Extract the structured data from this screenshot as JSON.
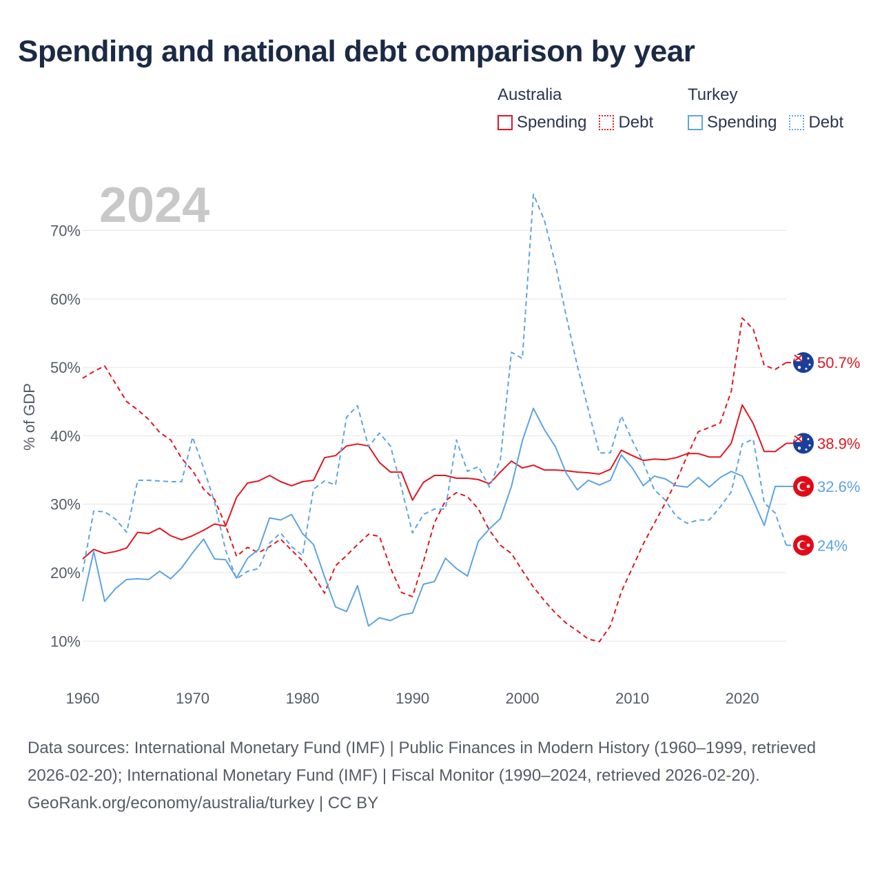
{
  "title": "Spending and national debt comparison by year",
  "legend": {
    "groups": [
      {
        "name": "Australia",
        "color": "#e0161e",
        "items": [
          {
            "label": "Spending",
            "style": "solid"
          },
          {
            "label": "Debt",
            "style": "dotted"
          }
        ]
      },
      {
        "name": "Turkey",
        "color": "#5ca3e3",
        "items": [
          {
            "label": "Spending",
            "style": "solid"
          },
          {
            "label": "Debt",
            "style": "dotted"
          }
        ]
      }
    ]
  },
  "year_label": "2024",
  "footer": {
    "sources": "Data sources: International Monetary Fund (IMF) | Public Finances in Modern History (1960–1999, retrieved 2026-02-20); International Monetary Fund (IMF) | Fiscal Monitor (1990–2024, retrieved 2026-02-20).",
    "credit": "GeoRank.org/economy/australia/turkey | CC BY"
  },
  "chart_data": {
    "type": "line",
    "ylabel": "% of GDP",
    "xlabel": "",
    "xlim": [
      1960,
      2024
    ],
    "ylim": [
      5,
      77
    ],
    "x_ticks": [
      1960,
      1970,
      1980,
      1990,
      2000,
      2010,
      2020
    ],
    "y_ticks": [
      10,
      20,
      30,
      40,
      50,
      60,
      70
    ],
    "y_tick_labels": [
      "10%",
      "20%",
      "30%",
      "40%",
      "50%",
      "60%",
      "70%"
    ],
    "grid": true,
    "x": [
      1960,
      1961,
      1962,
      1963,
      1964,
      1965,
      1966,
      1967,
      1968,
      1969,
      1970,
      1971,
      1972,
      1973,
      1974,
      1975,
      1976,
      1977,
      1978,
      1979,
      1980,
      1981,
      1982,
      1983,
      1984,
      1985,
      1986,
      1987,
      1988,
      1989,
      1990,
      1991,
      1992,
      1993,
      1994,
      1995,
      1996,
      1997,
      1998,
      1999,
      2000,
      2001,
      2002,
      2003,
      2004,
      2005,
      2006,
      2007,
      2008,
      2009,
      2010,
      2011,
      2012,
      2013,
      2014,
      2015,
      2016,
      2017,
      2018,
      2019,
      2020,
      2021,
      2022,
      2023,
      2024
    ],
    "series": [
      {
        "name": "Australia Debt",
        "country": "Australia",
        "kind": "Debt",
        "color": "#e0161e",
        "dash": "dashed",
        "end_label": "50.7%",
        "values": [
          48.4,
          49.4,
          50.2,
          47.6,
          45,
          43.8,
          42.4,
          40.5,
          39.4,
          36.7,
          34.9,
          32.2,
          30.7,
          26.9,
          22.4,
          23.7,
          22.9,
          23.8,
          24.9,
          23.3,
          21.7,
          19.6,
          17,
          21,
          22.5,
          24.1,
          25.6,
          25.3,
          20.7,
          17.1,
          16.5,
          21.6,
          27.3,
          30.5,
          31.7,
          31.1,
          29.3,
          26.2,
          24,
          22.8,
          20.3,
          17.9,
          15.9,
          14.1,
          12.6,
          11.5,
          10.3,
          9.9,
          12.2,
          17.2,
          20.7,
          24.2,
          27.2,
          30.2,
          33.4,
          37.1,
          40.6,
          41.2,
          41.9,
          46.5,
          57.2,
          55.6,
          50.3,
          49.7,
          50.7
        ]
      },
      {
        "name": "Australia Spending",
        "country": "Australia",
        "kind": "Spending",
        "color": "#e0161e",
        "dash": "solid",
        "end_label": "38.9%",
        "values": [
          22,
          23.4,
          22.8,
          23.1,
          23.6,
          25.9,
          25.7,
          26.5,
          25.4,
          24.8,
          25.4,
          26.2,
          27.1,
          26.8,
          31,
          33.1,
          33.4,
          34.2,
          33.3,
          32.7,
          33.3,
          33.5,
          36.8,
          37.1,
          38.5,
          38.8,
          38.5,
          36.1,
          34.7,
          34.7,
          30.6,
          33.2,
          34.2,
          34.2,
          33.8,
          33.8,
          33.6,
          33,
          34.7,
          36.3,
          35.3,
          35.7,
          35,
          35,
          34.9,
          34.7,
          34.6,
          34.4,
          35.1,
          37.9,
          37.1,
          36.4,
          36.6,
          36.5,
          36.8,
          37.4,
          37.4,
          36.9,
          36.9,
          38.9,
          44.5,
          41.8,
          37.7,
          37.7,
          38.9
        ]
      },
      {
        "name": "Turkey Spending",
        "country": "Turkey",
        "kind": "Spending",
        "color": "#5ca3e3",
        "dash": "solid",
        "end_label": "32.6%",
        "values": [
          15.8,
          23.1,
          15.8,
          17.7,
          19,
          19.1,
          19,
          20.2,
          19.1,
          20.7,
          22.9,
          24.9,
          22,
          21.9,
          19.2,
          22.1,
          23.4,
          28,
          27.7,
          28.5,
          25.7,
          24.1,
          19.4,
          15,
          14.3,
          18.1,
          12.2,
          13.4,
          13,
          13.8,
          14.1,
          18.3,
          18.7,
          22.1,
          20.6,
          19.5,
          24.6,
          26.4,
          27.9,
          32.6,
          39.3,
          44,
          40.9,
          38.4,
          34.5,
          32.1,
          33.5,
          32.8,
          33.5,
          37.2,
          35.3,
          32.7,
          34.1,
          33.7,
          32.7,
          32.5,
          33.9,
          32.5,
          33.9,
          34.8,
          34.1,
          30.6,
          26.9,
          32.6,
          32.6
        ]
      },
      {
        "name": "Turkey Debt",
        "country": "Turkey",
        "kind": "Debt",
        "color": "#5ca3e3",
        "dash": "dashed",
        "end_label": "24%",
        "values": [
          20.1,
          29,
          28.9,
          27.8,
          25.9,
          33.5,
          33.5,
          33.4,
          33.3,
          33.3,
          39.8,
          35.3,
          30.3,
          23.3,
          19.1,
          20.2,
          20.6,
          24.3,
          25.8,
          23.8,
          22.5,
          32.2,
          33.4,
          32.8,
          42.7,
          44.4,
          38.4,
          40.4,
          38.5,
          32.4,
          25.8,
          28.5,
          29.3,
          29.3,
          39.4,
          34.8,
          35.5,
          32.5,
          36.5,
          52.2,
          51.3,
          75.3,
          71.5,
          65.1,
          57.4,
          50.2,
          43.8,
          37.5,
          37.5,
          42.9,
          39.3,
          36.1,
          32.1,
          30.6,
          28.2,
          27.2,
          27.7,
          27.7,
          29.6,
          31.8,
          38.8,
          39.5,
          30.2,
          28.7,
          24
        ]
      }
    ]
  },
  "flag_icons": {
    "Australia": "australia-flag-icon",
    "Turkey": "turkey-flag-icon"
  }
}
